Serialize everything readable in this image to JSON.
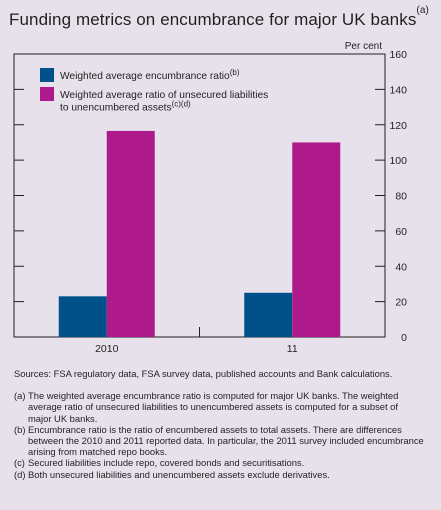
{
  "title": "Funding metrics on encumbrance for major UK banks",
  "title_note": "(a)",
  "chart_data": {
    "type": "bar",
    "title": "Funding metrics on encumbrance for major UK banks",
    "unit_label": "Per cent",
    "categories": [
      "2010",
      "11"
    ],
    "series": [
      {
        "name": "Weighted average encumbrance ratio",
        "note": "(b)",
        "color": "#00508a",
        "values": [
          23,
          25
        ]
      },
      {
        "name": "Weighted average ratio of unsecured liabilities to unencumbered assets",
        "note": "(c)(d)",
        "color": "#ae1a8c",
        "values": [
          116.5,
          110
        ]
      }
    ],
    "legend_lines": [
      [
        "Weighted average encumbrance ratio"
      ],
      [
        "Weighted average ratio of unsecured liabilities",
        "to unencumbered assets"
      ]
    ],
    "y_ticks": [
      "0",
      "20",
      "40",
      "60",
      "80",
      "100",
      "120",
      "140",
      "160"
    ],
    "ylim": [
      0,
      160
    ],
    "grid": false,
    "legend_position": "top-left"
  },
  "sources": "Sources:  FSA regulatory data, FSA survey data, published accounts and Bank calculations.",
  "footnotes": [
    {
      "index": "(a)",
      "text": "The weighted average encumbrance ratio is computed for major UK banks. The weighted average ratio of unsecured liabilities to unencumbered assets is computed for a subset of major UK banks."
    },
    {
      "index": "(b)",
      "text": "Encumbrance ratio is the ratio of encumbered assets to total assets. There are differences between the 2010 and 2011 reported data. In particular, the 2011 survey included encumbrance arising from matched repo books."
    },
    {
      "index": "(c)",
      "text": "Secured liabilities include repo, covered bonds and securitisations."
    },
    {
      "index": "(d)",
      "text": "Both unsecured liabilities and unencumbered assets exclude derivatives."
    }
  ]
}
